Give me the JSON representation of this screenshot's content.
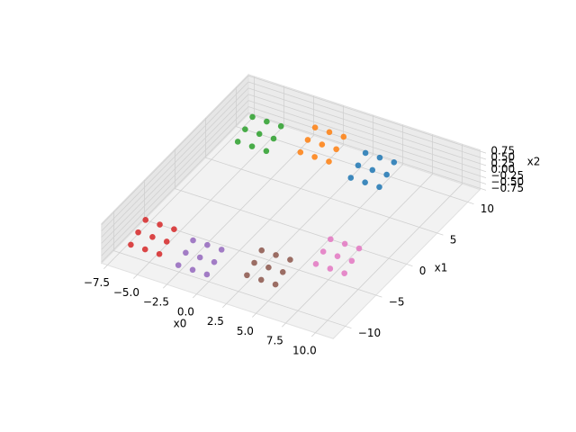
{
  "chart_data": {
    "type": "scatter3d",
    "x_label": "x0",
    "y_label": "x1",
    "z_label": "x2",
    "xlim": [
      -8,
      11.5
    ],
    "ylim": [
      -12,
      12
    ],
    "zlim": [
      -0.8,
      0.8
    ],
    "xticks": [
      {
        "value": -7.5,
        "label": "−7.5"
      },
      {
        "value": -5,
        "label": "−5.0"
      },
      {
        "value": -2.5,
        "label": "−2.5"
      },
      {
        "value": 0,
        "label": "0.0"
      },
      {
        "value": 2.5,
        "label": "2.5"
      },
      {
        "value": 5,
        "label": "5.0"
      },
      {
        "value": 7.5,
        "label": "7.5"
      },
      {
        "value": 10,
        "label": "10.0"
      }
    ],
    "yticks": [
      {
        "value": -10,
        "label": "−10"
      },
      {
        "value": -5,
        "label": "−5"
      },
      0,
      5,
      10
    ],
    "zticks": [
      {
        "value": -0.75,
        "label": "−0.75"
      },
      {
        "value": -0.5,
        "label": "−0.50"
      },
      {
        "value": -0.25,
        "label": "−0.25"
      },
      {
        "value": 0,
        "label": "0.00"
      },
      {
        "value": 0.25,
        "label": "0.25"
      },
      {
        "value": 0.5,
        "label": "0.50"
      },
      {
        "value": 0.75,
        "label": "0.75"
      }
    ],
    "grid": true,
    "series": [
      {
        "color": "#2ca02c",
        "x": [
          -5.7,
          -4.5,
          -3.3,
          -5.7,
          -4.5,
          -3.3,
          -5.7,
          -4.5,
          -3.3
        ],
        "y": [
          8.2,
          8.2,
          8.2,
          7,
          7,
          7,
          5.8,
          5.8,
          5.8
        ],
        "z": [
          0.4,
          0.4,
          0.4,
          0.2,
          0.2,
          0.2,
          0,
          0,
          0
        ]
      },
      {
        "color": "#ff7f0e",
        "x": [
          -1.2,
          0,
          1.2,
          -1.2,
          0,
          1.2,
          -1.2,
          0,
          1.2
        ],
        "y": [
          9.7,
          9.7,
          9.7,
          8.5,
          8.5,
          8.5,
          7.3,
          7.3,
          7.3
        ],
        "z": [
          0.3,
          0.3,
          0.3,
          0.1,
          0.1,
          0.1,
          -0.1,
          -0.1,
          -0.1
        ]
      },
      {
        "color": "#1f77b4",
        "x": [
          3.3,
          4.5,
          5.7,
          3.3,
          4.5,
          5.7,
          3.3,
          4.5,
          5.7
        ],
        "y": [
          9.2,
          9.2,
          9.2,
          8,
          8,
          8,
          6.8,
          6.8,
          6.8
        ],
        "z": [
          0.1,
          0.1,
          0.1,
          -0.1,
          -0.1,
          -0.1,
          -0.3,
          -0.3,
          -0.3
        ]
      },
      {
        "color": "#d62728",
        "x": [
          -6.2,
          -5,
          -3.8,
          -6.2,
          -5,
          -3.8,
          -6.2,
          -5,
          -3.8
        ],
        "y": [
          -8.3,
          -8.3,
          -8.3,
          -9.5,
          -9.5,
          -9.5,
          -10.7,
          -10.7,
          -10.7
        ],
        "z": [
          0.3,
          0.3,
          0.3,
          0.1,
          0.1,
          0.1,
          -0.1,
          -0.1,
          -0.1
        ]
      },
      {
        "color": "#9467bd",
        "x": [
          -2.2,
          -1,
          0.2,
          -2.2,
          -1,
          0.2,
          -2.2,
          -1,
          0.2
        ],
        "y": [
          -8.3,
          -8.3,
          -8.3,
          -9.5,
          -9.5,
          -9.5,
          -10.7,
          -10.7,
          -10.7
        ],
        "z": [
          0.1,
          0.1,
          0.1,
          -0.1,
          -0.1,
          -0.1,
          -0.3,
          -0.3,
          -0.3
        ]
      },
      {
        "color": "#8c564b",
        "x": [
          2.8,
          4,
          5.2,
          2.8,
          4,
          5.2,
          2.8,
          4,
          5.2
        ],
        "y": [
          -6.8,
          -6.8,
          -6.8,
          -8,
          -8,
          -8,
          -9.2,
          -9.2,
          -9.2
        ],
        "z": [
          0.1,
          0.1,
          0.1,
          -0.1,
          -0.1,
          -0.1,
          -0.3,
          -0.3,
          -0.3
        ]
      },
      {
        "color": "#e377c2",
        "x": [
          6.8,
          8,
          9.2,
          6.8,
          8,
          9.2,
          6.8,
          8,
          9.2
        ],
        "y": [
          -3.3,
          -3.3,
          -3.3,
          -4.5,
          -4.5,
          -4.5,
          -5.7,
          -5.7,
          -5.7
        ],
        "z": [
          0.3,
          0.3,
          0.3,
          0.1,
          0.1,
          0.1,
          -0.1,
          -0.1,
          -0.1
        ]
      }
    ]
  }
}
